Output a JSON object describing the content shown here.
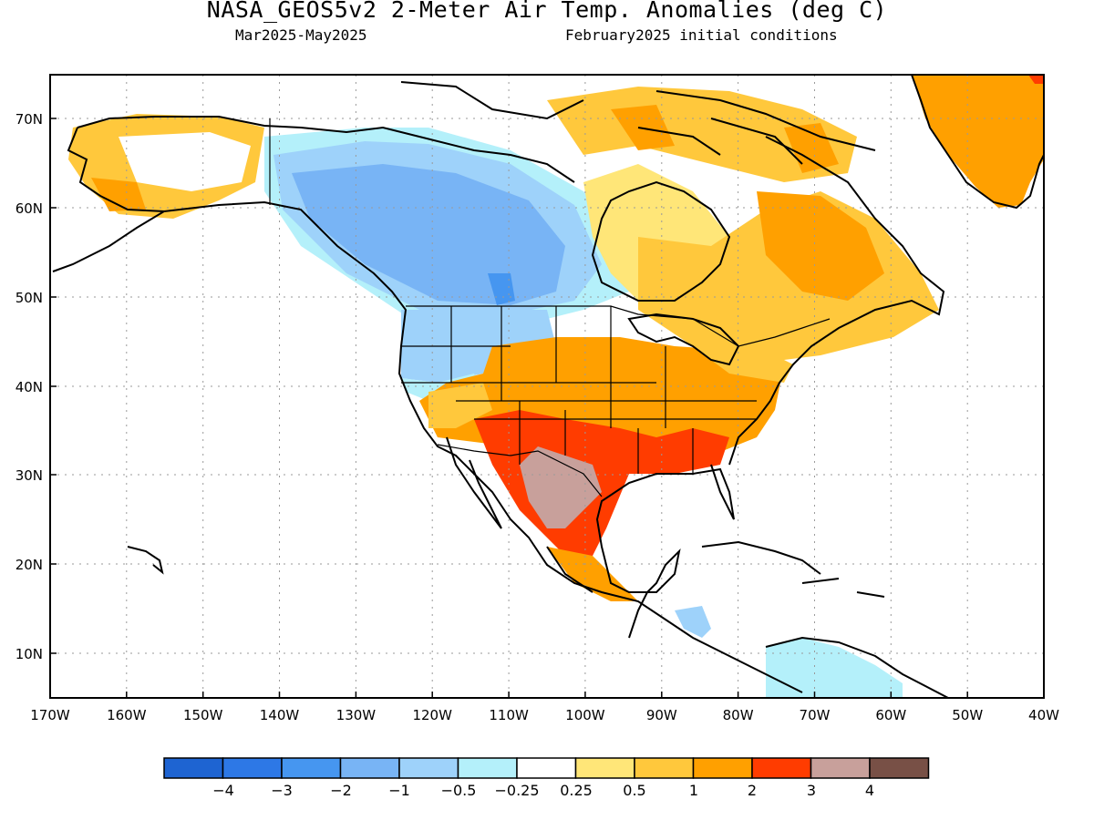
{
  "title": "NASA_GEOS5v2 2-Meter Air Temp. Anomalies (deg C)",
  "subtitle_left": "Mar2025-May2025",
  "subtitle_right": "February2025 initial conditions",
  "map": {
    "lon_labels": [
      "170W",
      "160W",
      "150W",
      "140W",
      "130W",
      "120W",
      "110W",
      "100W",
      "90W",
      "80W",
      "70W",
      "60W",
      "50W",
      "40W"
    ],
    "lat_labels": [
      "70N",
      "60N",
      "50N",
      "40N",
      "30N",
      "20N",
      "10N"
    ],
    "lat_values": [
      70,
      60,
      50,
      40,
      30,
      20,
      10
    ],
    "lon_values": [
      -170,
      -160,
      -150,
      -140,
      -130,
      -120,
      -110,
      -100,
      -90,
      -80,
      -70,
      -60,
      -50,
      -40
    ],
    "extent": {
      "lon_min": -170,
      "lon_max": -40,
      "lat_min": 5,
      "lat_max": 75
    }
  },
  "colorbar": {
    "colors": [
      "#1e64d2",
      "#2d78e6",
      "#4696f0",
      "#78b4f5",
      "#9ed2fa",
      "#b4f0fa",
      "#ffffff",
      "#ffe678",
      "#ffc83c",
      "#ffa000",
      "#ff3c00",
      "#c8a09b",
      "#785046"
    ],
    "tick_labels": [
      "-4",
      "-3",
      "-2",
      "-1",
      "-0.5",
      "-0.25",
      "0.25",
      "0.5",
      "1",
      "2",
      "3",
      "4"
    ]
  }
}
